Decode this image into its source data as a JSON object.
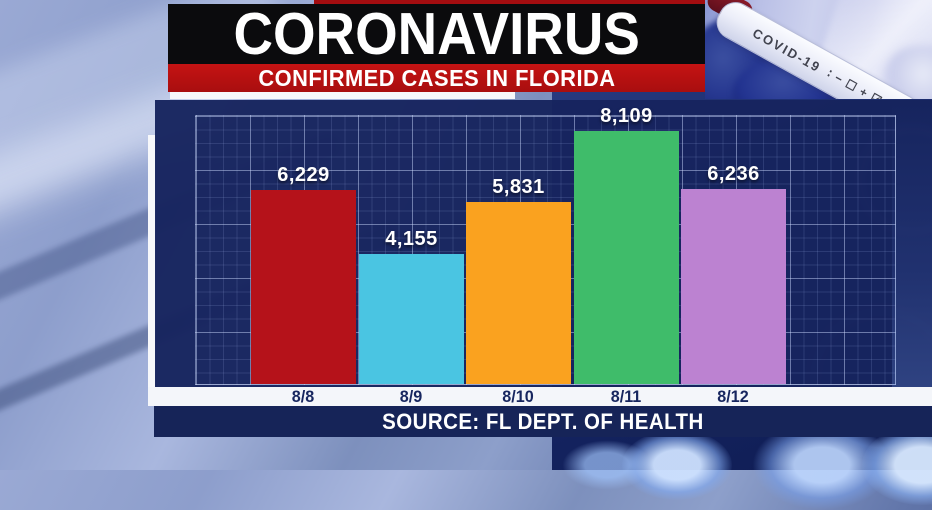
{
  "header": {
    "title": "CORONAVIRUS",
    "subtitle": "CONFIRMED CASES IN FLORIDA"
  },
  "photo": {
    "tube_label": "COVID-19",
    "tube_symbols": "∶ − ☐ + ☑"
  },
  "source_bar": {
    "text": "SOURCE: FL DEPT. OF HEALTH"
  },
  "chart_data": {
    "type": "bar",
    "title": "CONFIRMED CASES IN FLORIDA",
    "categories": [
      "8/8",
      "8/9",
      "8/10",
      "8/11",
      "8/12"
    ],
    "values": [
      6229,
      4155,
      5831,
      8109,
      6236
    ],
    "value_labels": [
      "6,229",
      "4,155",
      "5,831",
      "8,109",
      "6,236"
    ],
    "bar_colors": [
      "#b5121a",
      "#4ac5e2",
      "#faa21f",
      "#3fbc6a",
      "#bc82d1"
    ],
    "xlabel": "",
    "ylabel": "",
    "ylim": [
      0,
      8650
    ],
    "grid": true,
    "legend": "none",
    "source": "SOURCE: FL DEPT. OF HEALTH"
  },
  "colors": {
    "panel_navy": "#17245e",
    "banner_black": "#0b0b0d",
    "banner_red": "#c51313",
    "axis_strip_white": "#f4f6fa",
    "source_strip_navy": "#162458",
    "axis_label_navy": "#17265f",
    "grid_line": "#cddafa"
  }
}
